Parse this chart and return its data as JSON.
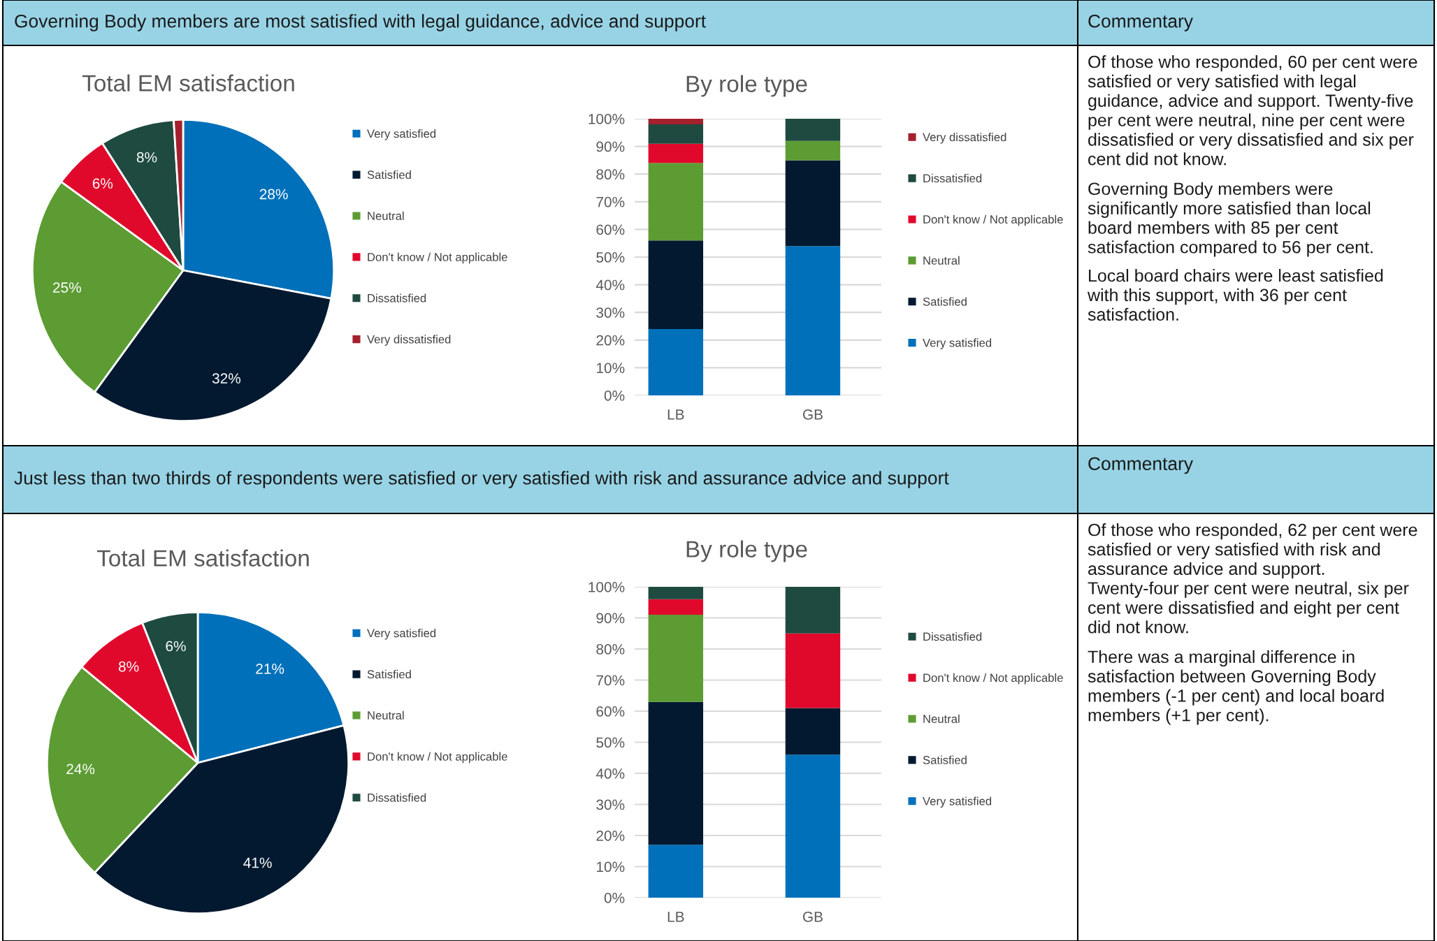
{
  "chart_data": [
    {
      "type": "pie",
      "title": "Total EM satisfaction",
      "annotations": [
        "Governing Body members are most satisfied with legal guidance, advice and support"
      ],
      "legend": "right",
      "categories": [
        "Very satisfied",
        "Satisfied",
        "Neutral",
        "Don't know / Not applicable",
        "Dissatisfied",
        "Very dissatisfied"
      ],
      "values": [
        28,
        32,
        25,
        6,
        8,
        1
      ],
      "value_labels": [
        "28%",
        "32%",
        "25%",
        "6%",
        "8%",
        null
      ],
      "colors": [
        "#0070ba",
        "#021930",
        "#5c9c33",
        "#e0092c",
        "#1e4a3f",
        "#a4202d"
      ]
    },
    {
      "type": "bar",
      "title": "By role type",
      "stacked": true,
      "legend": "right",
      "grid": "y",
      "categories": [
        "LB",
        "GB"
      ],
      "ylim": [
        0,
        100
      ],
      "yticks": [
        {
          "value": 0,
          "label": "0%"
        },
        {
          "value": 10,
          "label": "10%"
        },
        {
          "value": 20,
          "label": "20%"
        },
        {
          "value": 30,
          "label": "30%"
        },
        {
          "value": 40,
          "label": "40%"
        },
        {
          "value": 50,
          "label": "50%"
        },
        {
          "value": 60,
          "label": "60%"
        },
        {
          "value": 70,
          "label": "70%"
        },
        {
          "value": 80,
          "label": "80%"
        },
        {
          "value": 90,
          "label": "90%"
        },
        {
          "value": 100,
          "label": "100%"
        }
      ],
      "series": [
        {
          "name": "Very satisfied",
          "color": "#0070ba",
          "values": [
            24,
            54
          ]
        },
        {
          "name": "Satisfied",
          "color": "#021930",
          "values": [
            32,
            31
          ]
        },
        {
          "name": "Neutral",
          "color": "#5c9c33",
          "values": [
            28,
            7
          ]
        },
        {
          "name": "Don't know / Not applicable",
          "color": "#e0092c",
          "values": [
            7,
            0
          ]
        },
        {
          "name": "Dissatisfied",
          "color": "#1e4a3f",
          "values": [
            7,
            8
          ]
        },
        {
          "name": "Very dissatisfied",
          "color": "#a4202d",
          "values": [
            2,
            0
          ]
        }
      ]
    },
    {
      "type": "other",
      "title": "Commentary",
      "annotations": [
        "Of those who responded, 60 per cent were satisfied or very satisfied with legal guidance, advice and support. Twenty-five per cent were neutral, nine per cent were dissatisfied or very dissatisfied and six per cent did not know.",
        "Governing Body members were significantly more satisfied than local board members with 85 per cent satisfaction compared to 56 per cent.",
        "Local board chairs were least satisfied with this support, with 36 per cent satisfaction."
      ]
    },
    {
      "type": "pie",
      "title": "Total EM satisfaction",
      "annotations": [
        "Just less than two thirds of respondents were satisfied or very satisfied with risk and assurance advice and support"
      ],
      "legend": "right",
      "categories": [
        "Very satisfied",
        "Satisfied",
        "Neutral",
        "Don't know / Not applicable",
        "Dissatisfied"
      ],
      "values": [
        21,
        41,
        24,
        8,
        6
      ],
      "value_labels": [
        "21%",
        "41%",
        "24%",
        "8%",
        "6%"
      ],
      "colors": [
        "#0070ba",
        "#021930",
        "#5c9c33",
        "#e0092c",
        "#1e4a3f"
      ]
    },
    {
      "type": "bar",
      "title": "By role type",
      "stacked": true,
      "legend": "right",
      "grid": "y",
      "categories": [
        "LB",
        "GB"
      ],
      "ylim": [
        0,
        100
      ],
      "yticks": [
        {
          "value": 0,
          "label": "0%"
        },
        {
          "value": 10,
          "label": "10%"
        },
        {
          "value": 20,
          "label": "20%"
        },
        {
          "value": 30,
          "label": "30%"
        },
        {
          "value": 40,
          "label": "40%"
        },
        {
          "value": 50,
          "label": "50%"
        },
        {
          "value": 60,
          "label": "60%"
        },
        {
          "value": 70,
          "label": "70%"
        },
        {
          "value": 80,
          "label": "80%"
        },
        {
          "value": 90,
          "label": "90%"
        },
        {
          "value": 100,
          "label": "100%"
        }
      ],
      "series": [
        {
          "name": "Very satisfied",
          "color": "#0070ba",
          "values": [
            17,
            46
          ]
        },
        {
          "name": "Satisfied",
          "color": "#021930",
          "values": [
            46,
            15
          ]
        },
        {
          "name": "Neutral",
          "color": "#5c9c33",
          "values": [
            28,
            0
          ]
        },
        {
          "name": "Don't know / Not applicable",
          "color": "#e0092c",
          "values": [
            5,
            24
          ]
        },
        {
          "name": "Dissatisfied",
          "color": "#1e4a3f",
          "values": [
            4,
            15
          ]
        }
      ]
    },
    {
      "type": "other",
      "title": "Commentary",
      "annotations": [
        "Of those who responded, 62 per cent were satisfied or very satisfied with risk and assurance advice and support. Twenty-four per cent were neutral, six per cent were dissatisfied and eight per cent did not know.",
        "There was a marginal difference in satisfaction between Governing Body members (-1 per cent) and local board members (+1 per cent)."
      ]
    }
  ]
}
